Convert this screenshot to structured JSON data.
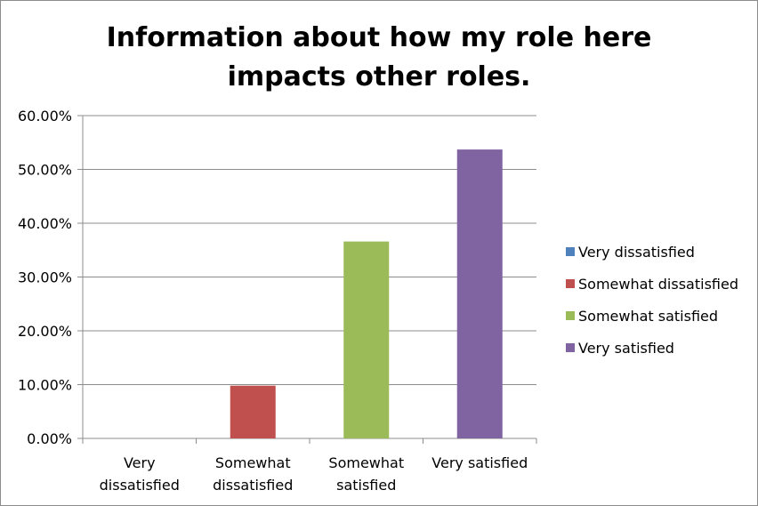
{
  "chart_data": {
    "type": "bar",
    "title_lines": [
      "Information about how my role here",
      "impacts other roles."
    ],
    "categories": [
      "Very dissatisfied",
      "Somewhat dissatisfied",
      "Somewhat satisfied",
      "Very satisfied"
    ],
    "category_label_lines": [
      [
        "Very",
        "dissatisfied"
      ],
      [
        "Somewhat",
        "dissatisfied"
      ],
      [
        "Somewhat",
        "satisfied"
      ],
      [
        "Very satisfied"
      ]
    ],
    "values": [
      0.0,
      9.8,
      36.6,
      53.7
    ],
    "colors": [
      "#4f81bd",
      "#c0504d",
      "#9bbb59",
      "#8064a2"
    ],
    "ylim": [
      0,
      60
    ],
    "y_ticks": [
      0,
      10,
      20,
      30,
      40,
      50,
      60
    ],
    "y_tick_labels": [
      "0.00%",
      "10.00%",
      "20.00%",
      "30.00%",
      "40.00%",
      "50.00%",
      "60.00%"
    ],
    "legend": [
      "Very dissatisfied",
      "Somewhat dissatisfied",
      "Somewhat satisfied",
      "Very satisfied"
    ],
    "legend_position": "right",
    "grid": true,
    "xlabel": "",
    "ylabel": ""
  }
}
